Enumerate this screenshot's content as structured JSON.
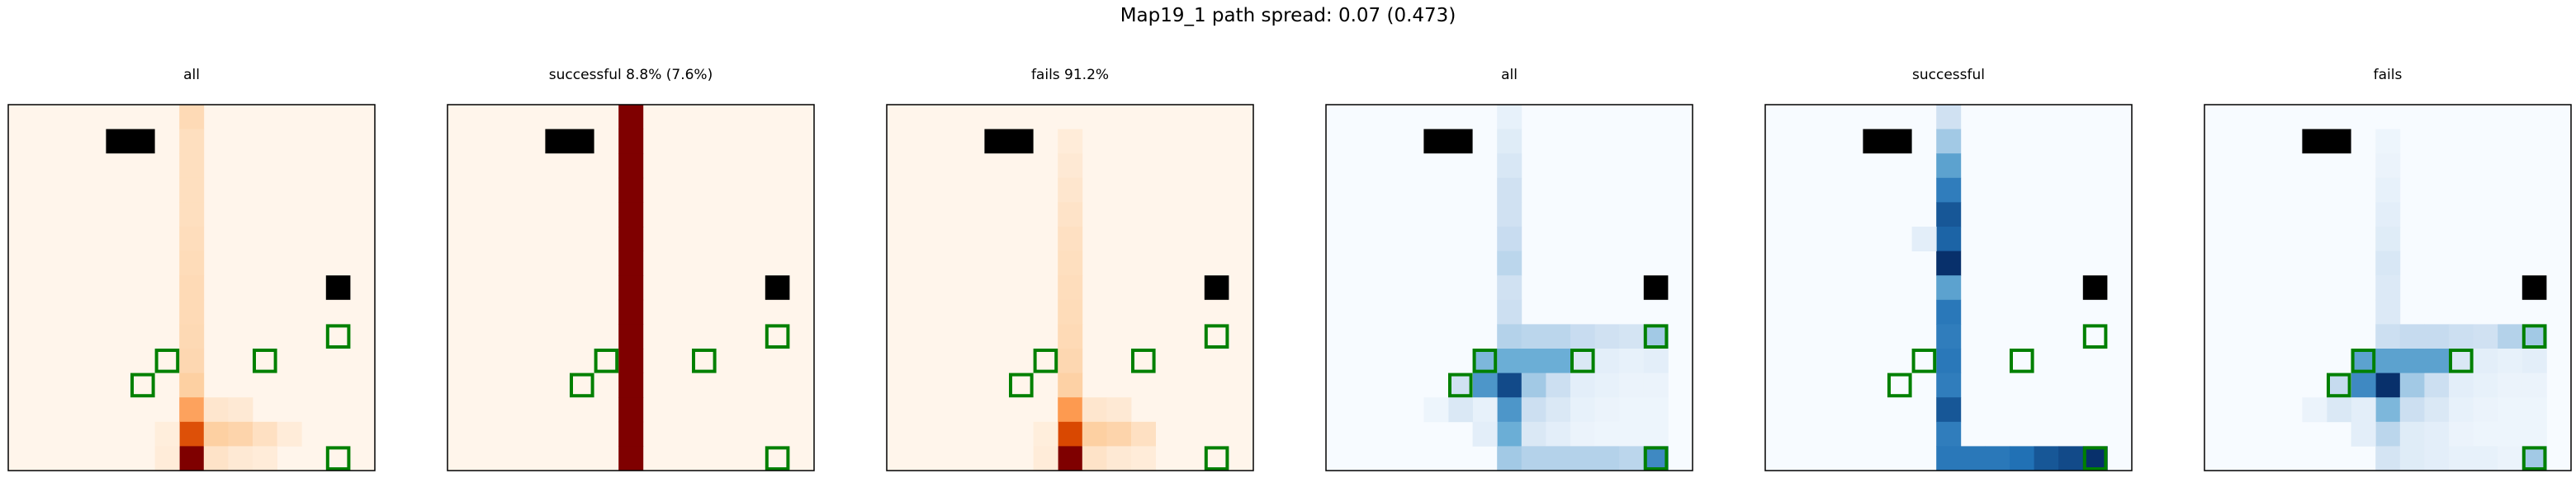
{
  "figure": {
    "suptitle": "Map19_1 path spread: 0.07 (0.473)"
  },
  "chart_data": [
    {
      "type": "heatmap",
      "title": "all",
      "colormap": "Oranges",
      "grid_size": [
        15,
        15
      ],
      "cells": [
        {
          "col": 7,
          "rows": [
            0,
            1,
            2,
            3,
            4,
            5,
            6,
            7,
            8,
            9,
            10,
            11,
            12,
            13,
            14
          ],
          "values": [
            0.18,
            0.15,
            0.15,
            0.15,
            0.15,
            0.16,
            0.17,
            0.18,
            0.18,
            0.19,
            0.2,
            0.25,
            0.42,
            0.72,
            1.0
          ]
        },
        {
          "col": 6,
          "rows": [
            13,
            14
          ],
          "values": [
            0.05,
            0.06
          ]
        },
        {
          "col": 8,
          "rows": [
            12,
            13,
            14
          ],
          "values": [
            0.1,
            0.25,
            0.12
          ]
        },
        {
          "col": 9,
          "rows": [
            12,
            13,
            14
          ],
          "values": [
            0.08,
            0.22,
            0.08
          ]
        },
        {
          "col": 10,
          "rows": [
            13,
            14
          ],
          "values": [
            0.14,
            0.06
          ]
        },
        {
          "col": 11,
          "rows": [
            13
          ],
          "values": [
            0.06
          ]
        }
      ]
    },
    {
      "type": "heatmap",
      "title": "successful 8.8% (7.6%)",
      "colormap": "Oranges",
      "grid_size": [
        15,
        15
      ],
      "cells": [
        {
          "col": 7,
          "rows": [
            0,
            1,
            2,
            3,
            4,
            5,
            6,
            7,
            8,
            9,
            10,
            11,
            12,
            13,
            14
          ],
          "values": [
            1,
            1,
            1,
            1,
            1,
            1,
            1,
            1,
            1,
            1,
            1,
            1,
            1,
            1,
            1
          ]
        }
      ]
    },
    {
      "type": "heatmap",
      "title": "fails 91.2%",
      "colormap": "Oranges",
      "grid_size": [
        15,
        15
      ],
      "cells": [
        {
          "col": 7,
          "rows": [
            1,
            2,
            3,
            4,
            5,
            6,
            7,
            8,
            9,
            10,
            11,
            12,
            13,
            14
          ],
          "values": [
            0.06,
            0.08,
            0.1,
            0.12,
            0.14,
            0.15,
            0.16,
            0.17,
            0.18,
            0.2,
            0.24,
            0.45,
            0.75,
            1.0
          ]
        },
        {
          "col": 6,
          "rows": [
            13,
            14
          ],
          "values": [
            0.05,
            0.06
          ]
        },
        {
          "col": 8,
          "rows": [
            12,
            13,
            14
          ],
          "values": [
            0.1,
            0.25,
            0.12
          ]
        },
        {
          "col": 9,
          "rows": [
            12,
            13,
            14
          ],
          "values": [
            0.08,
            0.22,
            0.08
          ]
        },
        {
          "col": 10,
          "rows": [
            13,
            14
          ],
          "values": [
            0.14,
            0.06
          ]
        }
      ]
    },
    {
      "type": "heatmap",
      "title": "all",
      "colormap": "Blues",
      "grid_size": [
        15,
        15
      ],
      "cells": [
        {
          "col": 7,
          "rows": [
            0,
            1,
            2,
            3,
            4,
            5,
            6,
            7,
            8,
            9,
            10,
            11,
            12,
            13,
            14
          ],
          "values": [
            0.08,
            0.12,
            0.16,
            0.2,
            0.2,
            0.24,
            0.28,
            0.2,
            0.22,
            0.3,
            0.5,
            0.9,
            0.6,
            0.5,
            0.35
          ]
        },
        {
          "col": 6,
          "rows": [
            10,
            11,
            12,
            13
          ],
          "values": [
            0.45,
            0.6,
            0.08,
            0.1
          ]
        },
        {
          "col": 5,
          "rows": [
            11,
            12
          ],
          "values": [
            0.2,
            0.15
          ]
        },
        {
          "col": 4,
          "rows": [
            12
          ],
          "values": [
            0.05
          ]
        },
        {
          "col": 8,
          "rows": [
            9,
            10,
            11,
            12,
            13,
            14
          ],
          "values": [
            0.28,
            0.5,
            0.35,
            0.22,
            0.15,
            0.3
          ]
        },
        {
          "col": 9,
          "rows": [
            9,
            10,
            11,
            12,
            13,
            14
          ],
          "values": [
            0.28,
            0.5,
            0.22,
            0.15,
            0.1,
            0.3
          ]
        },
        {
          "col": 10,
          "rows": [
            9,
            10,
            11,
            12,
            13,
            14
          ],
          "values": [
            0.24,
            0.15,
            0.1,
            0.08,
            0.06,
            0.3
          ]
        },
        {
          "col": 11,
          "rows": [
            9,
            10,
            11,
            12,
            13,
            14
          ],
          "values": [
            0.2,
            0.1,
            0.08,
            0.06,
            0.05,
            0.3
          ]
        },
        {
          "col": 12,
          "rows": [
            9,
            10,
            11,
            12,
            13,
            14
          ],
          "values": [
            0.18,
            0.08,
            0.06,
            0.05,
            0.05,
            0.28
          ]
        },
        {
          "col": 13,
          "rows": [
            9,
            10,
            11,
            12,
            13,
            14
          ],
          "values": [
            0.35,
            0.1,
            0.06,
            0.05,
            0.05,
            0.65
          ]
        }
      ]
    },
    {
      "type": "heatmap",
      "title": "successful",
      "colormap": "Blues",
      "grid_size": [
        15,
        15
      ],
      "cells": [
        {
          "col": 7,
          "rows": [
            0,
            1,
            2,
            3,
            4,
            5,
            6,
            7,
            8,
            9,
            10,
            11,
            12,
            13,
            14
          ],
          "values": [
            0.2,
            0.35,
            0.55,
            0.7,
            0.85,
            0.8,
            1.0,
            0.55,
            0.72,
            0.7,
            0.72,
            0.7,
            0.85,
            0.7,
            0.72
          ]
        },
        {
          "col": 6,
          "rows": [
            5
          ],
          "values": [
            0.1
          ]
        },
        {
          "col": 8,
          "rows": [
            14
          ],
          "values": [
            0.72
          ]
        },
        {
          "col": 9,
          "rows": [
            14
          ],
          "values": [
            0.72
          ]
        },
        {
          "col": 10,
          "rows": [
            14
          ],
          "values": [
            0.75
          ]
        },
        {
          "col": 11,
          "rows": [
            14
          ],
          "values": [
            0.85
          ]
        },
        {
          "col": 12,
          "rows": [
            14
          ],
          "values": [
            0.9
          ]
        },
        {
          "col": 13,
          "rows": [
            14
          ],
          "values": [
            1.0
          ]
        }
      ]
    },
    {
      "type": "heatmap",
      "title": "fails",
      "colormap": "Blues",
      "grid_size": [
        15,
        15
      ],
      "cells": [
        {
          "col": 7,
          "rows": [
            1,
            2,
            3,
            4,
            5,
            6,
            7,
            8,
            9,
            10,
            11,
            12,
            13,
            14
          ],
          "values": [
            0.05,
            0.06,
            0.08,
            0.1,
            0.12,
            0.16,
            0.14,
            0.14,
            0.22,
            0.55,
            1.0,
            0.45,
            0.28,
            0.18
          ]
        },
        {
          "col": 6,
          "rows": [
            10,
            11,
            12,
            13
          ],
          "values": [
            0.55,
            0.65,
            0.1,
            0.1
          ]
        },
        {
          "col": 5,
          "rows": [
            11,
            12
          ],
          "values": [
            0.25,
            0.15
          ]
        },
        {
          "col": 4,
          "rows": [
            12
          ],
          "values": [
            0.06
          ]
        },
        {
          "col": 8,
          "rows": [
            9,
            10,
            11,
            12,
            13,
            14
          ],
          "values": [
            0.25,
            0.55,
            0.35,
            0.22,
            0.12,
            0.12
          ]
        },
        {
          "col": 9,
          "rows": [
            9,
            10,
            11,
            12,
            13,
            14
          ],
          "values": [
            0.25,
            0.55,
            0.22,
            0.15,
            0.1,
            0.1
          ]
        },
        {
          "col": 10,
          "rows": [
            9,
            10,
            11,
            12,
            13,
            14
          ],
          "values": [
            0.22,
            0.15,
            0.1,
            0.08,
            0.06,
            0.08
          ]
        },
        {
          "col": 11,
          "rows": [
            9,
            10,
            11,
            12,
            13,
            14
          ],
          "values": [
            0.2,
            0.1,
            0.08,
            0.06,
            0.05,
            0.08
          ]
        },
        {
          "col": 12,
          "rows": [
            9,
            10,
            11,
            12,
            13,
            14
          ],
          "values": [
            0.3,
            0.08,
            0.06,
            0.05,
            0.05,
            0.06
          ]
        },
        {
          "col": 13,
          "rows": [
            9,
            10,
            11,
            12,
            13,
            14
          ],
          "values": [
            0.35,
            0.1,
            0.06,
            0.05,
            0.05,
            0.35
          ]
        }
      ]
    }
  ],
  "map": {
    "obstacle_color": "#000000",
    "goal_outline_color": "#008000",
    "obstacles": [
      {
        "col": 4,
        "row": 1
      },
      {
        "col": 5,
        "row": 1
      },
      {
        "col": 13,
        "row": 7
      }
    ],
    "goals": [
      {
        "col": 6,
        "row": 10
      },
      {
        "col": 5,
        "row": 11
      },
      {
        "col": 10,
        "row": 10
      },
      {
        "col": 13,
        "row": 9
      },
      {
        "col": 13,
        "row": 14
      }
    ]
  }
}
